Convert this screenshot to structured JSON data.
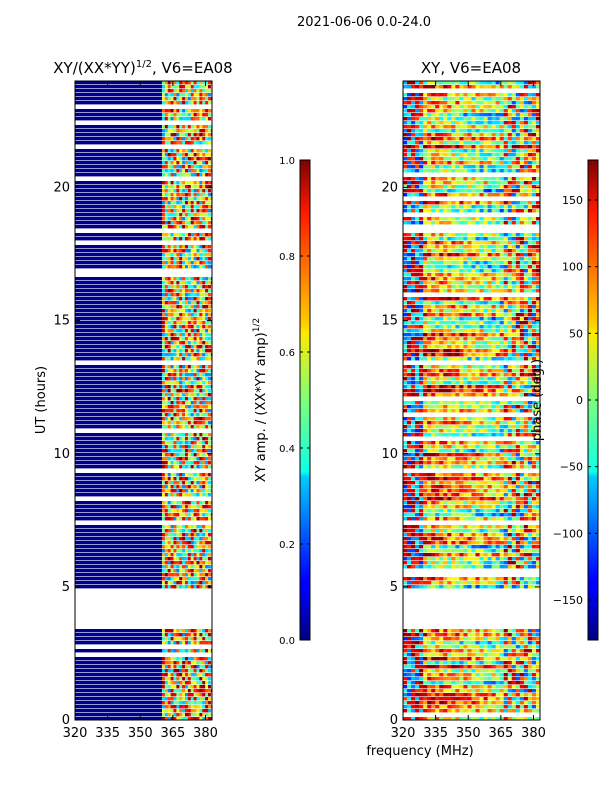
{
  "figure": {
    "suptitle": "2021-06-06 0.0-24.0"
  },
  "chart_data": [
    {
      "type": "heatmap",
      "title": "XY/(XX*YY)",
      "title_exponent": "1/2",
      "title_suffix": ", V6=EA08",
      "xlabel": "",
      "ylabel": "UT (hours)",
      "xlim": [
        320,
        383
      ],
      "ylim": [
        0,
        24
      ],
      "xticks": [
        "320",
        "335",
        "350",
        "365",
        "380"
      ],
      "xtick_values": [
        320,
        335,
        350,
        365,
        380
      ],
      "yticks": [
        "0",
        "5",
        "10",
        "15",
        "20"
      ],
      "ytick_values": [
        0,
        5,
        10,
        15,
        20
      ],
      "colorbar": {
        "label": "XY amp. / (XX*YY amp)",
        "label_exponent": "1/2",
        "range": [
          0.0,
          1.0
        ],
        "ticks": [
          "0.0",
          "0.2",
          "0.4",
          "0.6",
          "0.8",
          "1.0"
        ],
        "tick_values": [
          0.0,
          0.2,
          0.4,
          0.6,
          0.8,
          1.0
        ]
      },
      "data_gap_hours": [
        3.4,
        4.9
      ],
      "high_value_band_mhz": [
        360,
        383
      ]
    },
    {
      "type": "heatmap",
      "title": "XY, V6=EA08",
      "xlabel": "frequency (MHz)",
      "ylabel": "",
      "xlim": [
        320,
        383
      ],
      "ylim": [
        0,
        24
      ],
      "xticks": [
        "320",
        "335",
        "350",
        "365",
        "380"
      ],
      "xtick_values": [
        320,
        335,
        350,
        365,
        380
      ],
      "yticks": [
        "0",
        "5",
        "10",
        "15",
        "20"
      ],
      "ytick_values": [
        0,
        5,
        10,
        15,
        20
      ],
      "colorbar": {
        "label": "phase (deg.)",
        "range": [
          -180,
          180
        ],
        "ticks": [
          "−150",
          "−100",
          "−50",
          "0",
          "50",
          "100",
          "150"
        ],
        "tick_values": [
          -150,
          -100,
          -50,
          0,
          50,
          100,
          150
        ]
      },
      "data_gap_hours": [
        3.4,
        4.9
      ]
    }
  ]
}
